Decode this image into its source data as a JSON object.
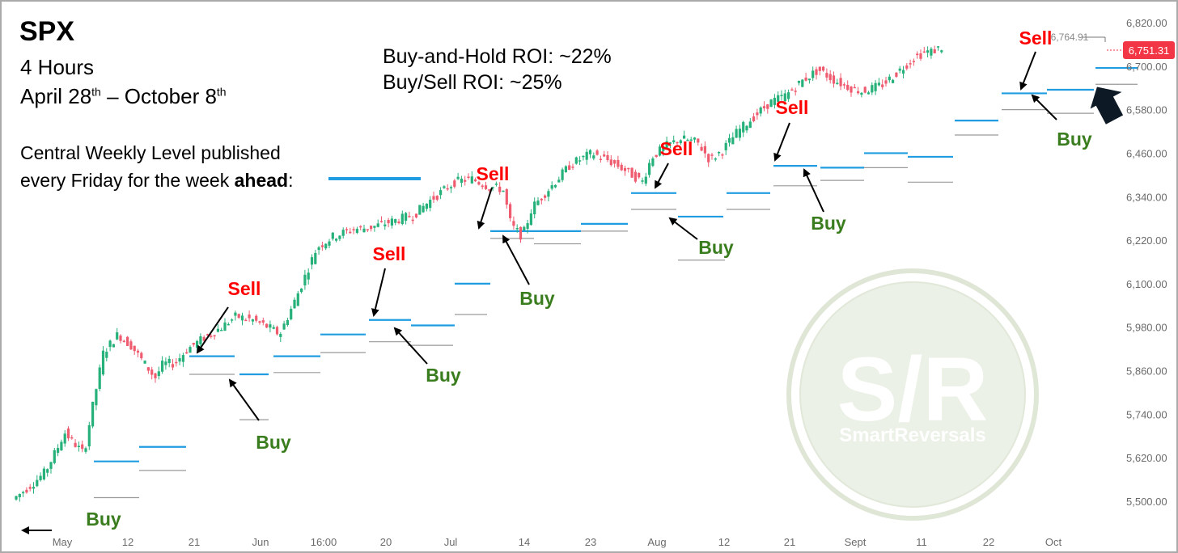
{
  "header": {
    "symbol": "SPX",
    "timeframe": "4 Hours",
    "range_start": "April 28",
    "range_start_sup": "th",
    "range_sep": " – October 8",
    "range_end_sup": "th",
    "buy_hold_roi": "Buy-and-Hold ROI: ~22%",
    "buy_sell_roi": "Buy/Sell ROI: ~25%",
    "legend_line1": "Central Weekly Level published",
    "legend_line2_a": "every Friday for the week ",
    "legend_line2_b": "ahead",
    "legend_line2_c": ":"
  },
  "watermark": {
    "text": "S/R",
    "brand": "SmartReversals"
  },
  "colors": {
    "bull": "#26b17a",
    "bear": "#ef5b6f",
    "level": "#1f9de0",
    "level_low": "#9a9a9a",
    "sell": "#ff0000",
    "buy": "#3a7d1e",
    "price_tag": "#f23645"
  },
  "chart_data": {
    "type": "candlestick",
    "title": "SPX",
    "timeframe": "4 Hours",
    "ylim": [
      5440,
      6830
    ],
    "y_ticks": [
      5500,
      5620,
      5740,
      5860,
      5980,
      6100,
      6220,
      6340,
      6460,
      6580,
      6700,
      6820
    ],
    "y_tick_labels": [
      "5,500.00",
      "5,620.00",
      "5,740.00",
      "5,860.00",
      "5,980.00",
      "6,100.00",
      "6,220.00",
      "6,340.00",
      "6,460.00",
      "6,580.00",
      "6,700.00",
      "6,820.00"
    ],
    "x_tick_labels": [
      "May",
      "12",
      "21",
      "Jun",
      "16:00",
      "20",
      "Jul",
      "14",
      "23",
      "Aug",
      "12",
      "21",
      "Sept",
      "11",
      "22",
      "Oct"
    ],
    "last_price_label": "6,751.31",
    "last_price": 6751.31,
    "high_marker_label": "6,764.91",
    "trend_points": [
      [
        0,
        5505
      ],
      [
        20,
        5540
      ],
      [
        40,
        5580
      ],
      [
        56,
        5650
      ],
      [
        64,
        5690
      ],
      [
        76,
        5660
      ],
      [
        88,
        5630
      ],
      [
        96,
        5730
      ],
      [
        112,
        5910
      ],
      [
        130,
        5960
      ],
      [
        146,
        5930
      ],
      [
        166,
        5870
      ],
      [
        176,
        5840
      ],
      [
        186,
        5880
      ],
      [
        200,
        5880
      ],
      [
        216,
        5920
      ],
      [
        236,
        5950
      ],
      [
        258,
        5980
      ],
      [
        276,
        6010
      ],
      [
        296,
        6000
      ],
      [
        316,
        5980
      ],
      [
        330,
        5960
      ],
      [
        350,
        6060
      ],
      [
        376,
        6200
      ],
      [
        396,
        6230
      ],
      [
        420,
        6250
      ],
      [
        442,
        6255
      ],
      [
        466,
        6270
      ],
      [
        496,
        6290
      ],
      [
        516,
        6330
      ],
      [
        546,
        6380
      ],
      [
        566,
        6390
      ],
      [
        586,
        6370
      ],
      [
        606,
        6360
      ],
      [
        616,
        6260
      ],
      [
        630,
        6230
      ],
      [
        642,
        6310
      ],
      [
        662,
        6360
      ],
      [
        690,
        6430
      ],
      [
        716,
        6460
      ],
      [
        736,
        6440
      ],
      [
        752,
        6420
      ],
      [
        766,
        6400
      ],
      [
        778,
        6380
      ],
      [
        790,
        6450
      ],
      [
        808,
        6480
      ],
      [
        826,
        6500
      ],
      [
        846,
        6490
      ],
      [
        862,
        6440
      ],
      [
        878,
        6470
      ],
      [
        896,
        6520
      ],
      [
        916,
        6560
      ],
      [
        936,
        6600
      ],
      [
        956,
        6620
      ],
      [
        976,
        6660
      ],
      [
        996,
        6690
      ],
      [
        1016,
        6660
      ],
      [
        1036,
        6640
      ],
      [
        1050,
        6630
      ],
      [
        1064,
        6640
      ],
      [
        1076,
        6650
      ],
      [
        1092,
        6680
      ],
      [
        1112,
        6720
      ],
      [
        1128,
        6740
      ],
      [
        1136,
        6740
      ],
      [
        1146,
        6751
      ]
    ],
    "weekly_levels": [
      {
        "x0": 96,
        "x1": 152,
        "value": 5610,
        "type": "central"
      },
      {
        "x0": 152,
        "x1": 210,
        "value": 5650,
        "type": "central"
      },
      {
        "x0": 96,
        "x1": 152,
        "value": 5510,
        "type": "low"
      },
      {
        "x0": 152,
        "x1": 210,
        "value": 5585,
        "type": "low"
      },
      {
        "x0": 214,
        "x1": 270,
        "value": 5900,
        "type": "central"
      },
      {
        "x0": 276,
        "x1": 312,
        "value": 5850,
        "type": "central"
      },
      {
        "x0": 214,
        "x1": 270,
        "value": 5850,
        "type": "low"
      },
      {
        "x0": 276,
        "x1": 312,
        "value": 5725,
        "type": "low"
      },
      {
        "x0": 318,
        "x1": 376,
        "value": 5900,
        "type": "central"
      },
      {
        "x0": 318,
        "x1": 376,
        "value": 5855,
        "type": "low"
      },
      {
        "x0": 376,
        "x1": 432,
        "value": 5960,
        "type": "central"
      },
      {
        "x0": 376,
        "x1": 432,
        "value": 5910,
        "type": "low"
      },
      {
        "x0": 436,
        "x1": 488,
        "value": 6000,
        "type": "central"
      },
      {
        "x0": 436,
        "x1": 488,
        "value": 5940,
        "type": "low"
      },
      {
        "x0": 488,
        "x1": 542,
        "value": 5985,
        "type": "central"
      },
      {
        "x0": 484,
        "x1": 540,
        "value": 5930,
        "type": "low"
      },
      {
        "x0": 542,
        "x1": 586,
        "value": 6100,
        "type": "central"
      },
      {
        "x0": 542,
        "x1": 582,
        "value": 6015,
        "type": "low"
      },
      {
        "x0": 586,
        "x1": 640,
        "value": 6245,
        "type": "central"
      },
      {
        "x0": 640,
        "x1": 698,
        "value": 6245,
        "type": "central"
      },
      {
        "x0": 586,
        "x1": 640,
        "value": 6225,
        "type": "low"
      },
      {
        "x0": 640,
        "x1": 698,
        "value": 6210,
        "type": "low"
      },
      {
        "x0": 698,
        "x1": 756,
        "value": 6265,
        "type": "central"
      },
      {
        "x0": 698,
        "x1": 756,
        "value": 6245,
        "type": "low"
      },
      {
        "x0": 760,
        "x1": 816,
        "value": 6350,
        "type": "central"
      },
      {
        "x0": 760,
        "x1": 816,
        "value": 6305,
        "type": "low"
      },
      {
        "x0": 818,
        "x1": 874,
        "value": 6285,
        "type": "central"
      },
      {
        "x0": 818,
        "x1": 876,
        "value": 6165,
        "type": "low"
      },
      {
        "x0": 878,
        "x1": 932,
        "value": 6350,
        "type": "central"
      },
      {
        "x0": 878,
        "x1": 932,
        "value": 6305,
        "type": "low"
      },
      {
        "x0": 936,
        "x1": 990,
        "value": 6425,
        "type": "central"
      },
      {
        "x0": 936,
        "x1": 990,
        "value": 6370,
        "type": "low"
      },
      {
        "x0": 994,
        "x1": 1048,
        "value": 6420,
        "type": "central"
      },
      {
        "x0": 994,
        "x1": 1048,
        "value": 6385,
        "type": "low"
      },
      {
        "x0": 1048,
        "x1": 1102,
        "value": 6460,
        "type": "central"
      },
      {
        "x0": 1048,
        "x1": 1102,
        "value": 6420,
        "type": "low"
      },
      {
        "x0": 1102,
        "x1": 1158,
        "value": 6450,
        "type": "central"
      },
      {
        "x0": 1102,
        "x1": 1158,
        "value": 6380,
        "type": "low"
      },
      {
        "x0": 1160,
        "x1": 1214,
        "value": 6550,
        "type": "central"
      },
      {
        "x0": 1160,
        "x1": 1214,
        "value": 6510,
        "type": "low"
      },
      {
        "x0": 1218,
        "x1": 1274,
        "value": 6625,
        "type": "central"
      },
      {
        "x0": 1218,
        "x1": 1274,
        "value": 6580,
        "type": "low"
      },
      {
        "x0": 1274,
        "x1": 1332,
        "value": 6635,
        "type": "central"
      },
      {
        "x0": 1274,
        "x1": 1332,
        "value": 6570,
        "type": "low"
      },
      {
        "x0": 1334,
        "x1": 1386,
        "value": 6695,
        "type": "central"
      },
      {
        "x0": 1334,
        "x1": 1386,
        "value": 6650,
        "type": "low"
      }
    ],
    "signals": [
      {
        "label": "Buy",
        "type": "buy",
        "at": [
          26,
          5445
        ]
      },
      {
        "label": "Sell",
        "type": "sell",
        "at": [
          242,
          5905
        ]
      },
      {
        "label": "Buy",
        "type": "buy",
        "at": [
          282,
          5840
        ]
      },
      {
        "label": "Sell",
        "type": "sell",
        "at": [
          462,
          6010
        ]
      },
      {
        "label": "Buy",
        "type": "buy",
        "at": [
          486,
          5985
        ]
      },
      {
        "label": "Sell",
        "type": "sell",
        "at": [
          592,
          6250
        ]
      },
      {
        "label": "Buy",
        "type": "buy",
        "at": [
          620,
          6240
        ]
      },
      {
        "label": "Sell",
        "type": "sell",
        "at": [
          808,
          6360
        ]
      },
      {
        "label": "Buy",
        "type": "buy",
        "at": [
          826,
          6290
        ]
      },
      {
        "label": "Sell",
        "type": "sell",
        "at": [
          956,
          6430
        ]
      },
      {
        "label": "Buy",
        "type": "buy",
        "at": [
          992,
          6420
        ]
      },
      {
        "label": "Sell",
        "type": "sell",
        "at": [
          1260,
          6630
        ]
      },
      {
        "label": "Buy",
        "type": "buy",
        "at": [
          1276,
          6620
        ]
      },
      {
        "label": "",
        "type": "pointer",
        "at": [
          1360,
          6660
        ]
      }
    ]
  }
}
